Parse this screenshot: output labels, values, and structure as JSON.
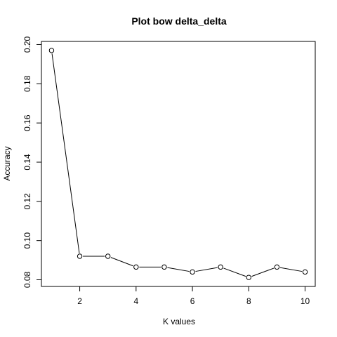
{
  "chart_data": {
    "type": "line",
    "title": "Plot bow delta_delta",
    "xlabel": "K values",
    "ylabel": "Accuracy",
    "x": [
      1,
      2,
      3,
      4,
      5,
      6,
      7,
      8,
      9,
      10
    ],
    "y": [
      0.197,
      0.092,
      0.092,
      0.0865,
      0.0865,
      0.084,
      0.0865,
      0.0812,
      0.0865,
      0.084
    ],
    "xlim": [
      0.64,
      10.36
    ],
    "ylim": [
      0.0766,
      0.2016
    ],
    "xticks": [
      2,
      4,
      6,
      8,
      10
    ],
    "xtick_labels": [
      "2",
      "4",
      "6",
      "8",
      "10"
    ],
    "yticks": [
      0.08,
      0.1,
      0.12,
      0.14,
      0.16,
      0.18,
      0.2
    ],
    "ytick_labels": [
      "0.08",
      "0.10",
      "0.12",
      "0.14",
      "0.16",
      "0.18",
      "0.20"
    ],
    "markers": "open-circle",
    "grid": false,
    "line_color": "#000000",
    "marker_fill": "#ffffff"
  }
}
